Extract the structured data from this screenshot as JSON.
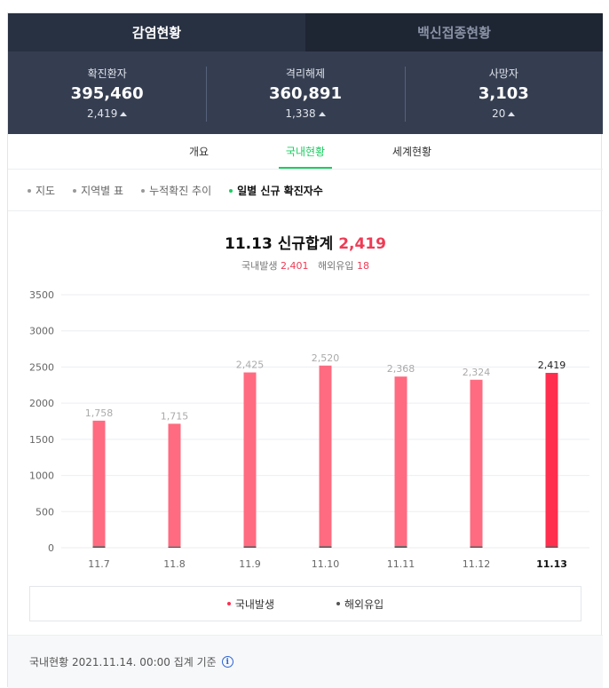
{
  "top_tabs": [
    {
      "label": "감염현황",
      "active": true
    },
    {
      "label": "백신접종현황",
      "active": false
    }
  ],
  "stats": [
    {
      "label": "확진환자",
      "value": "395,460",
      "change": "2,419"
    },
    {
      "label": "격리해제",
      "value": "360,891",
      "change": "1,338"
    },
    {
      "label": "사망자",
      "value": "3,103",
      "change": "20"
    }
  ],
  "sub_tabs": [
    {
      "label": "개요",
      "active": false
    },
    {
      "label": "국내현황",
      "active": true
    },
    {
      "label": "세계현황",
      "active": false
    }
  ],
  "views": [
    {
      "label": "지도",
      "active": false
    },
    {
      "label": "지역별 표",
      "active": false
    },
    {
      "label": "누적확진 추이",
      "active": false
    },
    {
      "label": "일별 신규 확진자수",
      "active": true
    }
  ],
  "headline": {
    "date": "11.13",
    "label": "신규합계",
    "total": "2,419",
    "domestic_label": "국내발생",
    "domestic_value": "2,401",
    "overseas_label": "해외유입",
    "overseas_value": "18"
  },
  "colors": {
    "accent_green": "#19ce60",
    "bar_domestic": "#ff6b80",
    "bar_highlight": "#ff2d4e",
    "bar_overseas": "#555555",
    "header_bg": "#283142"
  },
  "chart_data": {
    "type": "bar",
    "stacked": true,
    "categories": [
      "11.7",
      "11.8",
      "11.9",
      "11.10",
      "11.11",
      "11.12",
      "11.13"
    ],
    "total_labels": [
      "1,758",
      "1,715",
      "2,425",
      "2,520",
      "2,368",
      "2,324",
      "2,419"
    ],
    "series": [
      {
        "name": "국내발생",
        "values": [
          1738,
          1699,
          2406,
          2500,
          2346,
          2306,
          2401
        ]
      },
      {
        "name": "해외유입",
        "values": [
          20,
          16,
          19,
          20,
          22,
          18,
          18
        ]
      }
    ],
    "yticks": [
      "3500",
      "3000",
      "2500",
      "2000",
      "1500",
      "1000",
      "500",
      "0"
    ],
    "ylim": [
      0,
      3500
    ],
    "highlight_index": 6,
    "grid": true,
    "legend": "bottom"
  },
  "footer": {
    "text": "국내현황 2021.11.14. 00:00 집계 기준",
    "icon": "info-icon"
  }
}
